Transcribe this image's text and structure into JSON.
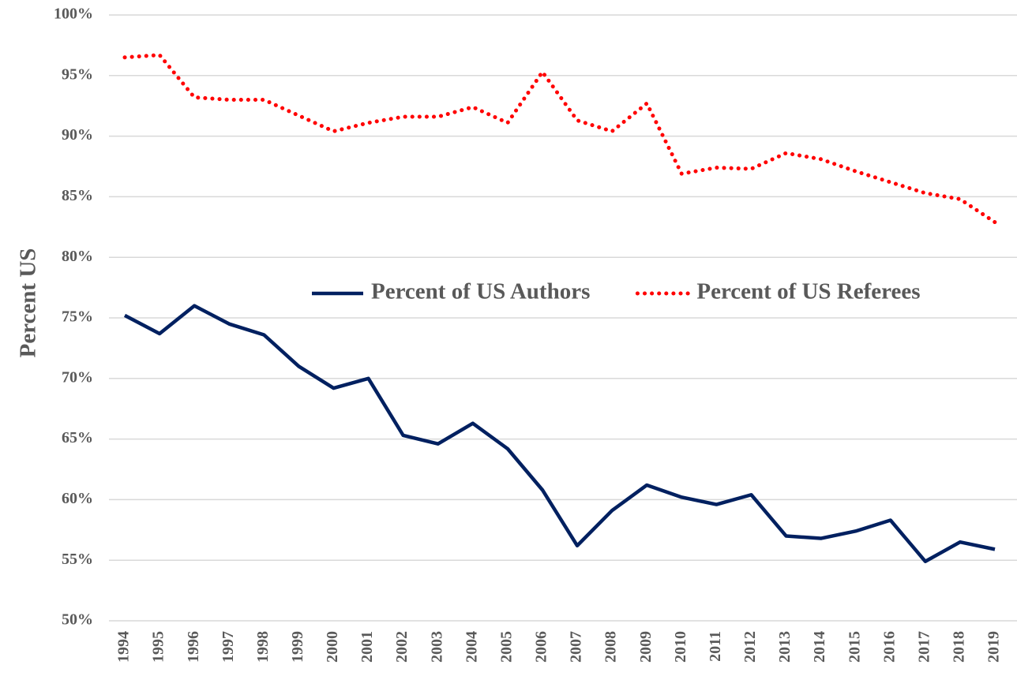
{
  "chart_data": {
    "type": "line",
    "y_label": "Percent US",
    "categories": [
      "1994",
      "1995",
      "1996",
      "1997",
      "1998",
      "1999",
      "2000",
      "2001",
      "2002",
      "2003",
      "2004",
      "2005",
      "2006",
      "2007",
      "2008",
      "2009",
      "2010",
      "2011",
      "2012",
      "2013",
      "2014",
      "2015",
      "2016",
      "2017",
      "2018",
      "2019"
    ],
    "series": [
      {
        "name": "Percent of US Authors",
        "color": "#002060",
        "dash": "solid",
        "values": [
          75.2,
          73.7,
          76.0,
          74.5,
          73.6,
          71.0,
          69.2,
          70.0,
          65.3,
          64.6,
          66.3,
          64.2,
          60.8,
          56.2,
          59.1,
          61.2,
          60.2,
          59.6,
          60.4,
          57.0,
          56.8,
          57.4,
          58.3,
          54.9,
          56.5,
          55.9
        ]
      },
      {
        "name": "Percent of US Referees",
        "color": "#ff0000",
        "dash": "dotted",
        "values": [
          96.5,
          96.7,
          93.2,
          93.0,
          93.0,
          91.7,
          90.4,
          91.1,
          91.6,
          91.6,
          92.4,
          91.1,
          95.3,
          91.3,
          90.4,
          92.7,
          86.9,
          87.4,
          87.3,
          88.6,
          88.1,
          87.1,
          86.2,
          85.3,
          84.8,
          82.9
        ]
      }
    ],
    "ylim": [
      50,
      100
    ],
    "yticks": [
      {
        "value": 50,
        "label": "50%"
      },
      {
        "value": 55,
        "label": "55%"
      },
      {
        "value": 60,
        "label": "60%"
      },
      {
        "value": 65,
        "label": "65%"
      },
      {
        "value": 70,
        "label": "70%"
      },
      {
        "value": 75,
        "label": "75%"
      },
      {
        "value": 80,
        "label": "80%"
      },
      {
        "value": 85,
        "label": "85%"
      },
      {
        "value": 90,
        "label": "90%"
      },
      {
        "value": 95,
        "label": "95%"
      },
      {
        "value": 100,
        "label": "100%"
      }
    ],
    "grid": true,
    "legend": "center"
  }
}
